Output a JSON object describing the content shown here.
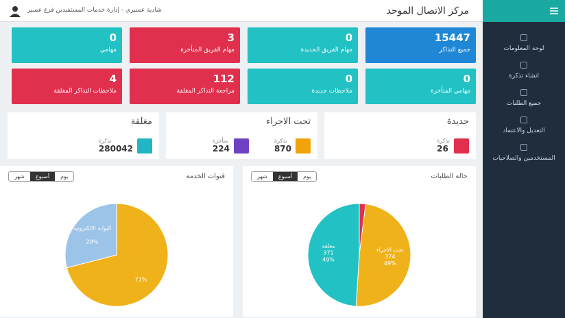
{
  "header": {
    "title": "مركز الاتصال الموحد",
    "user": "شادية عسيري - إدارة خدمات المستفيدين فرع عسير"
  },
  "sidebar": [
    "لوحة المعلومات",
    "انشاء تذكرة",
    "جميع الطلبات",
    "التعديل والاعتماد",
    "المستخدمين والصلاحيات"
  ],
  "tiles": [
    {
      "value": "15447",
      "label": "جميع التذاكر",
      "color": "#1f87d6"
    },
    {
      "value": "0",
      "label": "مهام الفريق الجديدة",
      "color": "#22c1c3"
    },
    {
      "value": "3",
      "label": "مهام الفريق المتأخرة",
      "color": "#e0304e"
    },
    {
      "value": "0",
      "label": "مهامي",
      "color": "#22c1c3"
    },
    {
      "value": "0",
      "label": "مهامي المتأخرة",
      "color": "#22c1c3"
    },
    {
      "value": "0",
      "label": "ملاحظات جديدة",
      "color": "#22c1c3"
    },
    {
      "value": "112",
      "label": "مراجعة التذاكر المغلقة",
      "color": "#e0304e"
    },
    {
      "value": "4",
      "label": "ملاحظات التذاكر المغلقة",
      "color": "#e0304e"
    }
  ],
  "cards": [
    {
      "title": "جديدة",
      "items": [
        {
          "label": "تذكرة",
          "value": "26",
          "color": "#e0304e"
        }
      ]
    },
    {
      "title": "تحت الاجراء",
      "items": [
        {
          "label": "تذكرة",
          "value": "870",
          "color": "#f0a30a"
        },
        {
          "label": "متأخرة",
          "value": "224",
          "color": "#6f42c1"
        }
      ]
    },
    {
      "title": "مغلقة",
      "items": [
        {
          "label": "تذكرة",
          "value": "280042",
          "color": "#22b5c3"
        }
      ]
    }
  ],
  "periods": [
    "يوم",
    "أسبوع",
    "شهر"
  ],
  "chart_data": [
    {
      "type": "pie",
      "title": "حالة الطلبات",
      "categories": [
        null,
        "تحت الاجراء",
        "مغلقة"
      ],
      "values": [
        2,
        49,
        49
      ],
      "value_labels": [
        null,
        "49%",
        "49%"
      ],
      "counts": [
        null,
        374,
        371
      ],
      "colors": [
        "#e0304e",
        "#f0b21a",
        "#22c1c3"
      ]
    },
    {
      "type": "pie",
      "title": "قنوات الخدمة",
      "categories": [
        null,
        "البوابة الالكترونية"
      ],
      "values": [
        71,
        29
      ],
      "value_labels": [
        "71%",
        "29%"
      ],
      "colors": [
        "#f0b21a",
        "#9cc3e8"
      ]
    }
  ]
}
